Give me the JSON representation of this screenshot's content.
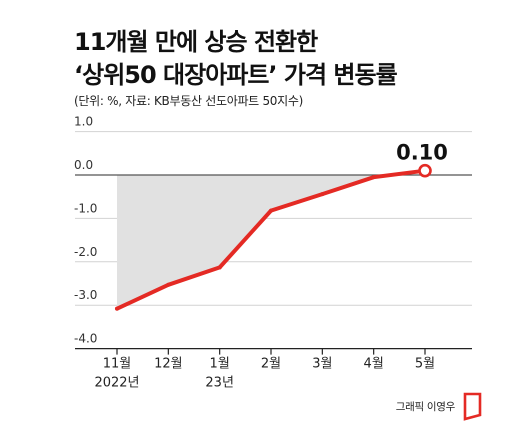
{
  "chart_data": {
    "type": "line",
    "title": "11개월 만에 상승 전환한\n‘상위50 대장아파트’ 가격 변동률",
    "subtitle": "(단위: %, 자료: KB부동산 선도아파트 50지수)",
    "xlabel": "",
    "ylabel": "",
    "categories": [
      "11월",
      "12월",
      "1월",
      "2월",
      "3월",
      "4월",
      "5월"
    ],
    "category_sublabels": [
      "2022년",
      null,
      "23년",
      null,
      null,
      null,
      null
    ],
    "series": [
      {
        "values": [
          -3.08,
          -2.53,
          -2.13,
          -0.82,
          -0.44,
          -0.05,
          0.1
        ]
      }
    ],
    "y_ticks": [
      "1.0",
      "0.0",
      "-1.0",
      "-2.0",
      "-3.0",
      "-4.0"
    ],
    "ylim": [
      -4,
      1
    ],
    "grid": true,
    "legend": "none",
    "annotations": [
      {
        "category": "5월",
        "text": "0.10"
      }
    ],
    "colors": {
      "line": "#e42a24",
      "shaded_area": "#e1e1e1",
      "marker_fill": "#ffffff",
      "gridline": "#d2d2d2",
      "zero_line": "#555555",
      "axis": "#222222",
      "text": "#222222"
    }
  },
  "footer": {
    "credit": "그래픽 이영우",
    "logo_icon": "publisher-logo-icon",
    "logo_color": "#e42a24"
  }
}
